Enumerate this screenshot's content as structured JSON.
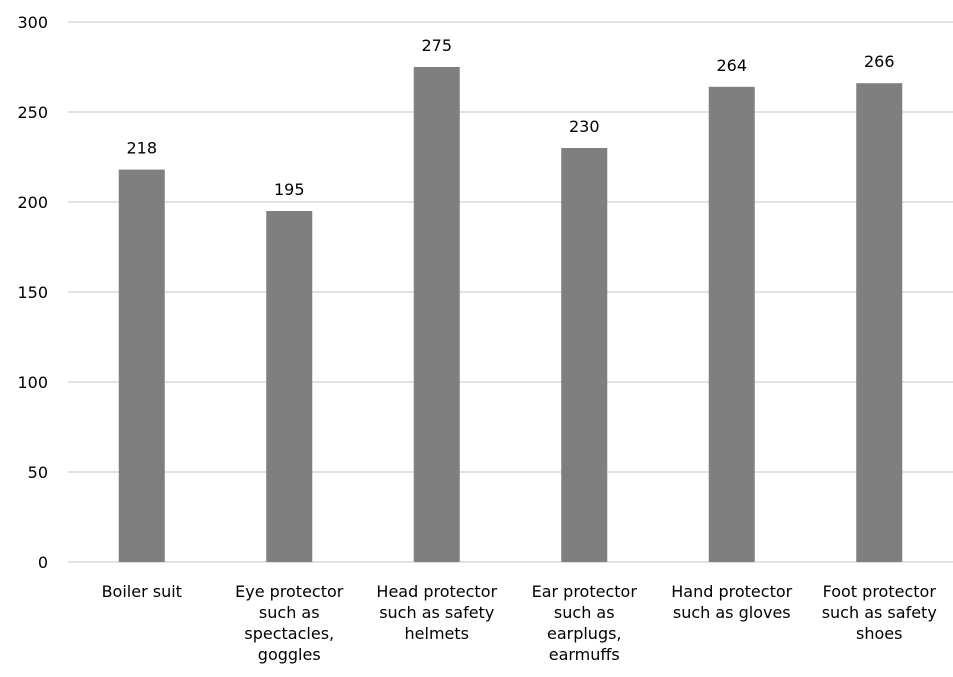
{
  "chart_data": {
    "type": "bar",
    "title": "",
    "xlabel": "",
    "ylabel": "",
    "categories": [
      "Boiler suit",
      "Eye protector such as spectacles, goggles",
      "Head protector such as safety helmets",
      "Ear protector such as earplugs, earmuffs",
      "Hand protector such as gloves",
      "Foot protector such as safety shoes"
    ],
    "category_lines": [
      [
        "Boiler suit"
      ],
      [
        "Eye protector",
        "such as",
        "spectacles,",
        "goggles"
      ],
      [
        "Head protector",
        "such as safety",
        "helmets"
      ],
      [
        "Ear protector",
        "such as",
        "earplugs,",
        "earmuffs"
      ],
      [
        "Hand protector",
        "such as gloves"
      ],
      [
        "Foot protector",
        "such as safety",
        "shoes"
      ]
    ],
    "values": [
      218,
      195,
      275,
      230,
      264,
      266
    ],
    "ylim": [
      0,
      300
    ],
    "yticks": [
      0,
      50,
      100,
      150,
      200,
      250,
      300
    ],
    "grid": true,
    "legend": "none",
    "bar_color": "#7f7f7f",
    "grid_color": "#d9d9d9"
  }
}
